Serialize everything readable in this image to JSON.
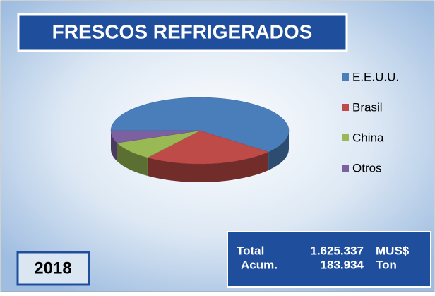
{
  "chart_data": {
    "type": "pie3d",
    "title": "FRESCOS REFRIGERADOS",
    "categories": [
      "E.E.U.U.",
      "Brasil",
      "China",
      "Otros"
    ],
    "values": [
      61,
      24,
      9,
      6
    ],
    "colors": [
      "#4a7ebb",
      "#be4b48",
      "#98b954",
      "#7d60a0"
    ],
    "legend": "right",
    "year": "2018",
    "totals": [
      [
        "Total",
        "1.625.337",
        "MUS$"
      ],
      [
        "Acum.",
        "183.934",
        "Ton"
      ]
    ]
  }
}
